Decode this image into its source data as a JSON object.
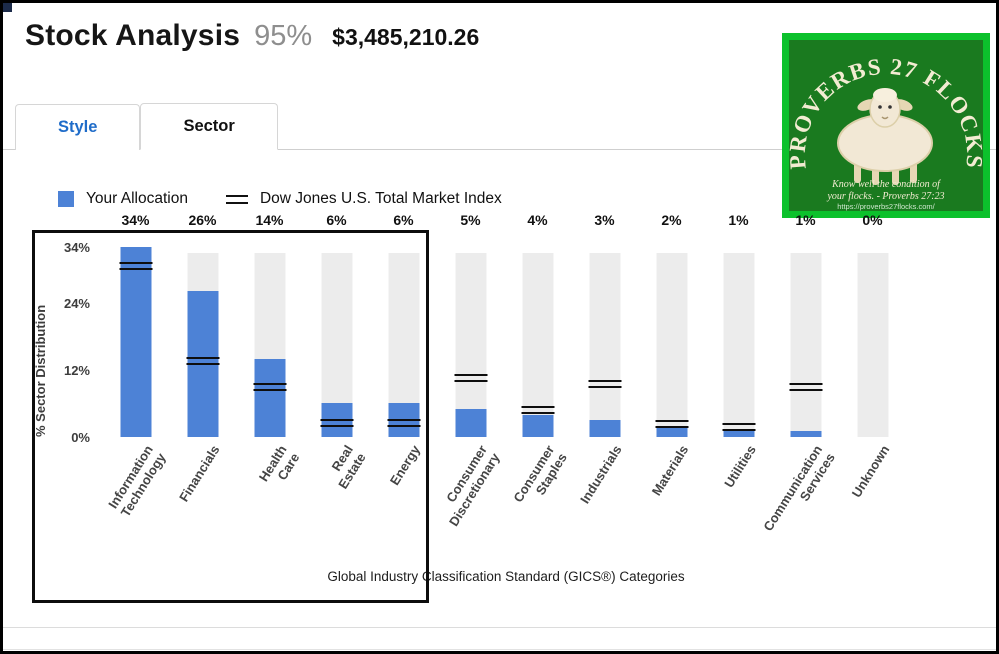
{
  "header": {
    "title": "Stock Analysis",
    "score": "95%",
    "amount": "$3,485,210.26"
  },
  "tabs": [
    {
      "label": "Style",
      "active": false
    },
    {
      "label": "Sector",
      "active": true
    }
  ],
  "legend": {
    "allocation_label": "Your Allocation",
    "index_label": "Dow Jones U.S. Total Market Index"
  },
  "logo": {
    "arc_text": "PROVERBS 27 FLOCKS",
    "tagline1": "Know well the condition of",
    "tagline2": "your flocks.  - Proverbs 27:23",
    "url": "https://proverbs27flocks.com/"
  },
  "chart_data": {
    "type": "bar",
    "title": "",
    "ylabel": "% Sector Distribution",
    "xlabel": "Global Industry Classification Standard (GICS®) Categories",
    "ylim": [
      0,
      34
    ],
    "grid": false,
    "legend_position": "top-left",
    "yticks": [
      {
        "label": "34%",
        "v": 34
      },
      {
        "label": "24%",
        "v": 24
      },
      {
        "label": "12%",
        "v": 12
      },
      {
        "label": "0%",
        "v": 0
      }
    ],
    "categories": [
      "Information\nTechnology",
      "Financials",
      "Health\nCare",
      "Real\nEstate",
      "Energy",
      "Consumer\nDiscretionary",
      "Consumer\nStaples",
      "Industrials",
      "Materials",
      "Utilities",
      "Communication\nServices",
      "Unknown"
    ],
    "bar_labels": [
      "34%",
      "26%",
      "14%",
      "6%",
      "6%",
      "5%",
      "4%",
      "3%",
      "2%",
      "1%",
      "1%",
      "0%"
    ],
    "series": [
      {
        "name": "Your Allocation",
        "values": [
          34,
          26,
          14,
          6,
          6,
          5,
          4,
          3,
          2,
          1,
          1,
          0
        ]
      },
      {
        "name": "Dow Jones U.S. Total Market Index",
        "values": [
          30.5,
          13.5,
          9,
          2.5,
          2.5,
          10.5,
          4.8,
          9.5,
          2.3,
          1.7,
          9,
          null
        ]
      }
    ]
  },
  "colors": {
    "allocation_blue": "#4d82d6",
    "track_gray": "#ececec",
    "marker_black": "#0e0e0e",
    "tab_blue": "#1f6cc9",
    "logo_border_green": "#0cc12c",
    "logo_bg_green": "#1a7a1f"
  }
}
